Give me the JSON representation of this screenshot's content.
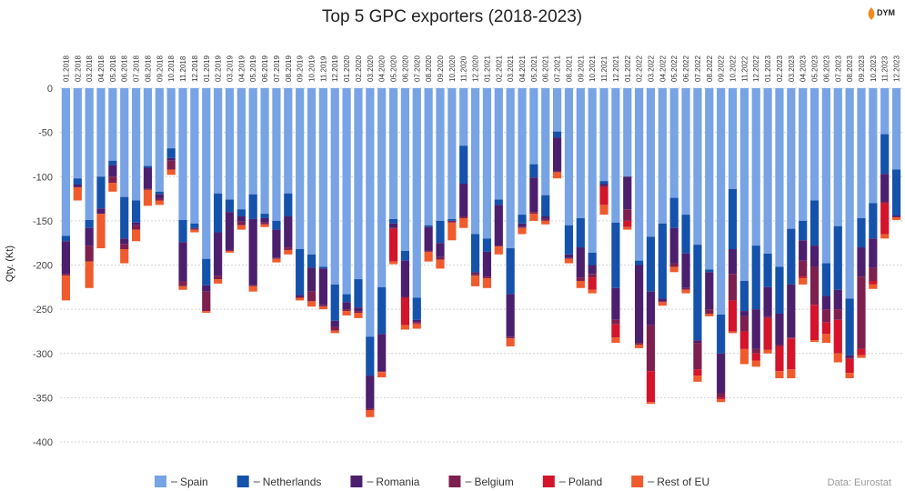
{
  "chart_data": {
    "type": "bar",
    "stacked": true,
    "title": "Top 5 GPC exporters (2018-2023)",
    "y_label": "Qty. (Kt)",
    "source": "Data: Eurostat",
    "logo": "DYM",
    "categories": [
      "01.2018",
      "02.2018",
      "03.2018",
      "04.2018",
      "05.2018",
      "06.2018",
      "07.2018",
      "08.2018",
      "09.2018",
      "10.2018",
      "11.2018",
      "12.2018",
      "01.2019",
      "02.2019",
      "03.2019",
      "04.2019",
      "05.2019",
      "06.2019",
      "07.2019",
      "08.2019",
      "09.2019",
      "10.2019",
      "11.2019",
      "12.2019",
      "01.2020",
      "02.2020",
      "03.2020",
      "04.2020",
      "05.2020",
      "06.2020",
      "07.2020",
      "08.2020",
      "09.2020",
      "10.2020",
      "11.2020",
      "12.2020",
      "01.2021",
      "02.2021",
      "03.2021",
      "04.2021",
      "05.2021",
      "06.2021",
      "07.2021",
      "08.2021",
      "09.2021",
      "10.2021",
      "11.2021",
      "12.2021",
      "01.2022",
      "02.2022",
      "03.2022",
      "04.2022",
      "05.2022",
      "06.2022",
      "07.2022",
      "08.2022",
      "09.2022",
      "10.2022",
      "11.2022",
      "12.2022",
      "01.2023",
      "02.2023",
      "03.2023",
      "04.2023",
      "05.2023",
      "06.2023",
      "07.2023",
      "08.2023",
      "09.2023",
      "10.2023",
      "11.2023",
      "12.2023"
    ],
    "series": [
      {
        "name": "Spain",
        "color": "#78a3e4",
        "values": [
          -167,
          -102,
          -149,
          -100,
          -82,
          -123,
          -127,
          -88,
          -117,
          -68,
          -149,
          -153,
          -193,
          -119,
          -126,
          -137,
          -120,
          -142,
          -150,
          -119,
          -182,
          -188,
          -202,
          -222,
          -233,
          -216,
          -281,
          -225,
          -148,
          -184,
          -237,
          -155,
          -150,
          -148,
          -65,
          -165,
          -170,
          -126,
          -181,
          -143,
          -86,
          -121,
          -49,
          -155,
          -147,
          -186,
          -105,
          -152,
          -100,
          -195,
          -168,
          -153,
          -124,
          -143,
          -177,
          -205,
          -256,
          -114,
          -218,
          -178,
          -187,
          -202,
          -159,
          -150,
          -127,
          -198,
          -156,
          -238,
          -147,
          -130,
          -52,
          -92
        ]
      },
      {
        "name": "Netherlands",
        "color": "#1552ab",
        "values": [
          -6,
          -7,
          -9,
          -36,
          -5,
          -47,
          -25,
          -2,
          -3,
          -11,
          -25,
          -5,
          -30,
          -44,
          -14,
          -8,
          -28,
          -5,
          -10,
          -26,
          -52,
          -15,
          -2,
          -41,
          -9,
          -32,
          -44,
          -53,
          -5,
          -11,
          -25,
          -2,
          -25,
          -2,
          -43,
          -43,
          -15,
          -6,
          -52,
          -10,
          -15,
          -24,
          -7,
          -33,
          -33,
          -14,
          -3,
          -74,
          0,
          -5,
          -62,
          -85,
          -34,
          -44,
          -108,
          -3,
          -44,
          -68,
          -34,
          -72,
          -38,
          -53,
          -63,
          -22,
          -51,
          -37,
          -72,
          -64,
          -33,
          -40,
          -45,
          -52
        ]
      },
      {
        "name": "Romania",
        "color": "#4b1f6e",
        "values": [
          -37,
          -3,
          -20,
          -6,
          -13,
          -6,
          -3,
          -24,
          -5,
          -3,
          -44,
          -1,
          -7,
          -49,
          -43,
          -6,
          -75,
          -5,
          -32,
          -35,
          -2,
          -27,
          -41,
          -7,
          -8,
          -4,
          -37,
          -42,
          -5,
          -41,
          -3,
          -27,
          -16,
          0,
          -37,
          -2,
          -28,
          -46,
          -48,
          -4,
          -39,
          -3,
          -38,
          -4,
          -34,
          -10,
          -2,
          -36,
          -37,
          -88,
          -38,
          -3,
          -40,
          -39,
          -3,
          -42,
          -45,
          -28,
          -6,
          -45,
          -33,
          -35,
          -60,
          -23,
          -24,
          -15,
          -22,
          -3,
          -33,
          -33,
          -31,
          -1
        ]
      },
      {
        "name": "Belgium",
        "color": "#7d2050",
        "values": [
          -2,
          0,
          -18,
          0,
          -7,
          -6,
          -5,
          -1,
          -2,
          -10,
          -6,
          -1,
          -22,
          -4,
          -1,
          -4,
          -1,
          -2,
          -1,
          -3,
          -1,
          -11,
          -2,
          -4,
          -2,
          -2,
          -2,
          -1,
          -1,
          -1,
          -1,
          -1,
          -3,
          -2,
          -2,
          -2,
          -2,
          -1,
          -2,
          -1,
          -2,
          -2,
          -1,
          -1,
          -4,
          -4,
          -2,
          -5,
          -13,
          -2,
          -52,
          -1,
          -4,
          -2,
          -30,
          -5,
          -5,
          -30,
          -17,
          -5,
          -2,
          -2,
          -1,
          -18,
          -43,
          -15,
          -12,
          -1,
          -82,
          -15,
          -2,
          -1
        ]
      },
      {
        "name": "Poland",
        "color": "#d3142b",
        "values": [
          0,
          0,
          0,
          0,
          0,
          0,
          0,
          0,
          0,
          0,
          0,
          0,
          0,
          0,
          0,
          0,
          0,
          0,
          0,
          0,
          0,
          0,
          0,
          0,
          0,
          0,
          0,
          0,
          -37,
          -31,
          -1,
          0,
          0,
          0,
          0,
          0,
          0,
          0,
          0,
          0,
          0,
          0,
          0,
          0,
          0,
          -14,
          -20,
          -15,
          -7,
          0,
          -35,
          0,
          0,
          0,
          -7,
          0,
          -2,
          -35,
          -20,
          -8,
          -36,
          -28,
          -35,
          -2,
          -40,
          -13,
          -38,
          -16,
          -7,
          -4,
          -35,
          0
        ]
      },
      {
        "name": "Rest of EU",
        "color": "#ef5b2d",
        "values": [
          -28,
          -15,
          -30,
          -39,
          -10,
          -16,
          -13,
          -18,
          -5,
          -6,
          -4,
          -3,
          -2,
          -5,
          -2,
          -5,
          -6,
          -3,
          -4,
          -5,
          -3,
          -6,
          -3,
          -3,
          -5,
          -6,
          -8,
          -6,
          -3,
          -5,
          -5,
          -11,
          -10,
          -20,
          -11,
          -12,
          -11,
          -9,
          -9,
          -7,
          -8,
          -4,
          -7,
          -5,
          -8,
          -4,
          -11,
          -6,
          -3,
          -4,
          -2,
          -4,
          -6,
          -4,
          -7,
          -3,
          -3,
          -2,
          -17,
          -7,
          -4,
          -8,
          -10,
          -7,
          -2,
          -10,
          -10,
          -6,
          -3,
          -5,
          -5,
          -3
        ]
      }
    ],
    "ylim": [
      -400,
      0
    ],
    "yticks": [
      0,
      -50,
      -100,
      -150,
      -200,
      -250,
      -300,
      -350,
      -400
    ],
    "grid": true
  }
}
